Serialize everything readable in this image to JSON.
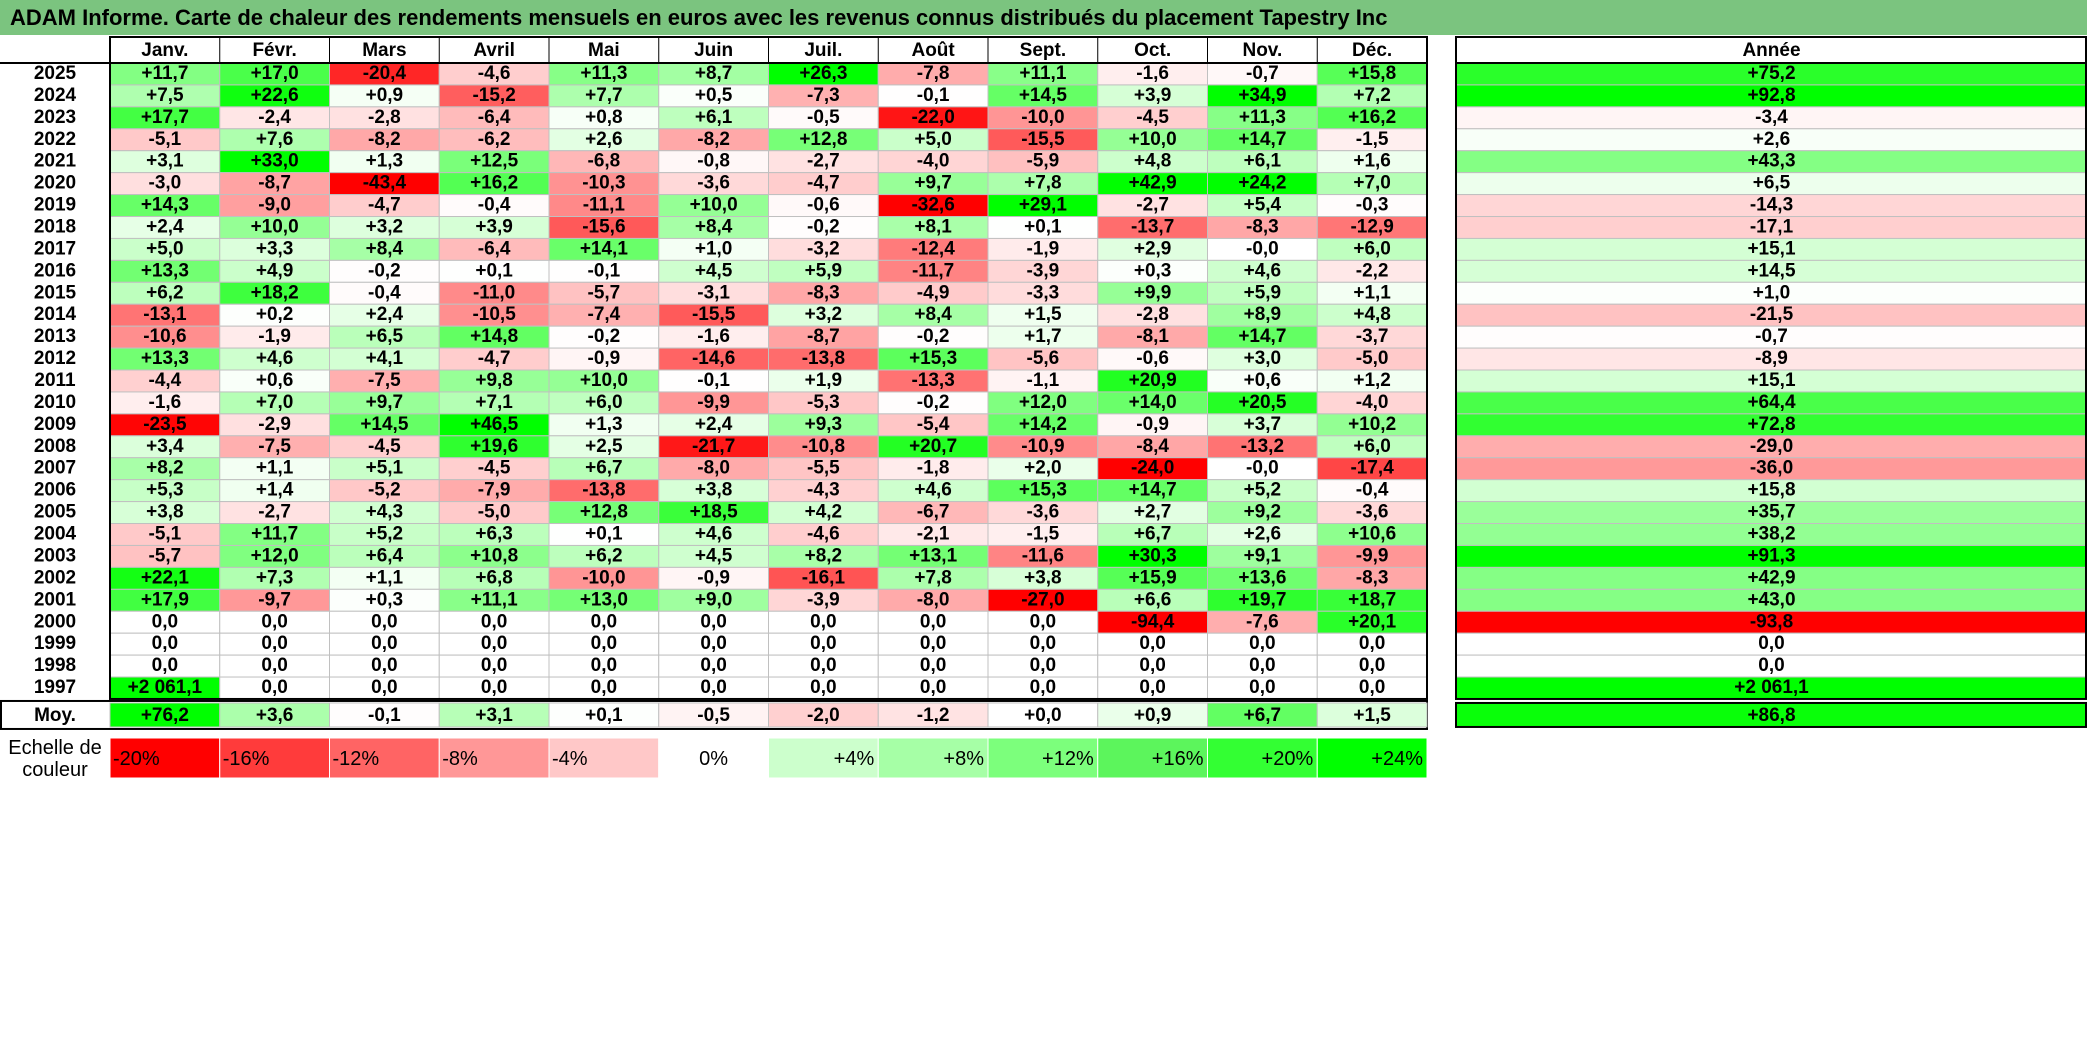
{
  "title": "ADAM Informe. Carte de chaleur des rendements mensuels en euros avec les revenus connus distribués du placement Tapestry Inc",
  "chart_data": {
    "type": "heatmap",
    "title": "ADAM Informe. Carte de chaleur des rendements mensuels en euros avec les revenus connus distribués du placement Tapestry Inc",
    "columns": [
      "Janv.",
      "Févr.",
      "Mars",
      "Avril",
      "Mai",
      "Juin",
      "Juil.",
      "Août",
      "Sept.",
      "Oct.",
      "Nov.",
      "Déc."
    ],
    "year_column_label": "Année",
    "rows": [
      {
        "year": "2025",
        "values": [
          "+11,7",
          "+17,0",
          "-20,4",
          "-4,6",
          "+11,3",
          "+8,7",
          "+26,3",
          "-7,8",
          "+11,1",
          "-1,6",
          "-0,7",
          "+15,8"
        ],
        "annual": "+75,2"
      },
      {
        "year": "2024",
        "values": [
          "+7,5",
          "+22,6",
          "+0,9",
          "-15,2",
          "+7,7",
          "+0,5",
          "-7,3",
          "-0,1",
          "+14,5",
          "+3,9",
          "+34,9",
          "+7,2"
        ],
        "annual": "+92,8"
      },
      {
        "year": "2023",
        "values": [
          "+17,7",
          "-2,4",
          "-2,8",
          "-6,4",
          "+0,8",
          "+6,1",
          "-0,5",
          "-22,0",
          "-10,0",
          "-4,5",
          "+11,3",
          "+16,2"
        ],
        "annual": "-3,4"
      },
      {
        "year": "2022",
        "values": [
          "-5,1",
          "+7,6",
          "-8,2",
          "-6,2",
          "+2,6",
          "-8,2",
          "+12,8",
          "+5,0",
          "-15,5",
          "+10,0",
          "+14,7",
          "-1,5"
        ],
        "annual": "+2,6"
      },
      {
        "year": "2021",
        "values": [
          "+3,1",
          "+33,0",
          "+1,3",
          "+12,5",
          "-6,8",
          "-0,8",
          "-2,7",
          "-4,0",
          "-5,9",
          "+4,8",
          "+6,1",
          "+1,6"
        ],
        "annual": "+43,3"
      },
      {
        "year": "2020",
        "values": [
          "-3,0",
          "-8,7",
          "-43,4",
          "+16,2",
          "-10,3",
          "-3,6",
          "-4,7",
          "+9,7",
          "+7,8",
          "+42,9",
          "+24,2",
          "+7,0"
        ],
        "annual": "+6,5"
      },
      {
        "year": "2019",
        "values": [
          "+14,3",
          "-9,0",
          "-4,7",
          "-0,4",
          "-11,1",
          "+10,0",
          "-0,6",
          "-32,6",
          "+29,1",
          "-2,7",
          "+5,4",
          "-0,3"
        ],
        "annual": "-14,3"
      },
      {
        "year": "2018",
        "values": [
          "+2,4",
          "+10,0",
          "+3,2",
          "+3,9",
          "-15,6",
          "+8,4",
          "-0,2",
          "+8,1",
          "+0,1",
          "-13,7",
          "-8,3",
          "-12,9"
        ],
        "annual": "-17,1"
      },
      {
        "year": "2017",
        "values": [
          "+5,0",
          "+3,3",
          "+8,4",
          "-6,4",
          "+14,1",
          "+1,0",
          "-3,2",
          "-12,4",
          "-1,9",
          "+2,9",
          "-0,0",
          "+6,0"
        ],
        "annual": "+15,1"
      },
      {
        "year": "2016",
        "values": [
          "+13,3",
          "+4,9",
          "-0,2",
          "+0,1",
          "-0,1",
          "+4,5",
          "+5,9",
          "-11,7",
          "-3,9",
          "+0,3",
          "+4,6",
          "-2,2"
        ],
        "annual": "+14,5"
      },
      {
        "year": "2015",
        "values": [
          "+6,2",
          "+18,2",
          "-0,4",
          "-11,0",
          "-5,7",
          "-3,1",
          "-8,3",
          "-4,9",
          "-3,3",
          "+9,9",
          "+5,9",
          "+1,1"
        ],
        "annual": "+1,0"
      },
      {
        "year": "2014",
        "values": [
          "-13,1",
          "+0,2",
          "+2,4",
          "-10,5",
          "-7,4",
          "-15,5",
          "+3,2",
          "+8,4",
          "+1,5",
          "-2,8",
          "+8,9",
          "+4,8"
        ],
        "annual": "-21,5"
      },
      {
        "year": "2013",
        "values": [
          "-10,6",
          "-1,9",
          "+6,5",
          "+14,8",
          "-0,2",
          "-1,6",
          "-8,7",
          "-0,2",
          "+1,7",
          "-8,1",
          "+14,7",
          "-3,7"
        ],
        "annual": "-0,7"
      },
      {
        "year": "2012",
        "values": [
          "+13,3",
          "+4,6",
          "+4,1",
          "-4,7",
          "-0,9",
          "-14,6",
          "-13,8",
          "+15,3",
          "-5,6",
          "-0,6",
          "+3,0",
          "-5,0"
        ],
        "annual": "-8,9"
      },
      {
        "year": "2011",
        "values": [
          "-4,4",
          "+0,6",
          "-7,5",
          "+9,8",
          "+10,0",
          "-0,1",
          "+1,9",
          "-13,3",
          "-1,1",
          "+20,9",
          "+0,6",
          "+1,2"
        ],
        "annual": "+15,1"
      },
      {
        "year": "2010",
        "values": [
          "-1,6",
          "+7,0",
          "+9,7",
          "+7,1",
          "+6,0",
          "-9,9",
          "-5,3",
          "-0,2",
          "+12,0",
          "+14,0",
          "+20,5",
          "-4,0"
        ],
        "annual": "+64,4"
      },
      {
        "year": "2009",
        "values": [
          "-23,5",
          "-2,9",
          "+14,5",
          "+46,5",
          "+1,3",
          "+2,4",
          "+9,3",
          "-5,4",
          "+14,2",
          "-0,9",
          "+3,7",
          "+10,2"
        ],
        "annual": "+72,8"
      },
      {
        "year": "2008",
        "values": [
          "+3,4",
          "-7,5",
          "-4,5",
          "+19,6",
          "+2,5",
          "-21,7",
          "-10,8",
          "+20,7",
          "-10,9",
          "-8,4",
          "-13,2",
          "+6,0"
        ],
        "annual": "-29,0"
      },
      {
        "year": "2007",
        "values": [
          "+8,2",
          "+1,1",
          "+5,1",
          "-4,5",
          "+6,7",
          "-8,0",
          "-5,5",
          "-1,8",
          "+2,0",
          "-24,0",
          "-0,0",
          "-17,4"
        ],
        "annual": "-36,0"
      },
      {
        "year": "2006",
        "values": [
          "+5,3",
          "+1,4",
          "-5,2",
          "-7,9",
          "-13,8",
          "+3,8",
          "-4,3",
          "+4,6",
          "+15,3",
          "+14,7",
          "+5,2",
          "-0,4"
        ],
        "annual": "+15,8"
      },
      {
        "year": "2005",
        "values": [
          "+3,8",
          "-2,7",
          "+4,3",
          "-5,0",
          "+12,8",
          "+18,5",
          "+4,2",
          "-6,7",
          "-3,6",
          "+2,7",
          "+9,2",
          "-3,6"
        ],
        "annual": "+35,7"
      },
      {
        "year": "2004",
        "values": [
          "-5,1",
          "+11,7",
          "+5,2",
          "+6,3",
          "+0,1",
          "+4,6",
          "-4,6",
          "-2,1",
          "-1,5",
          "+6,7",
          "+2,6",
          "+10,6"
        ],
        "annual": "+38,2"
      },
      {
        "year": "2003",
        "values": [
          "-5,7",
          "+12,0",
          "+6,4",
          "+10,8",
          "+6,2",
          "+4,5",
          "+8,2",
          "+13,1",
          "-11,6",
          "+30,3",
          "+9,1",
          "-9,9"
        ],
        "annual": "+91,3"
      },
      {
        "year": "2002",
        "values": [
          "+22,1",
          "+7,3",
          "+1,1",
          "+6,8",
          "-10,0",
          "-0,9",
          "-16,1",
          "+7,8",
          "+3,8",
          "+15,9",
          "+13,6",
          "-8,3"
        ],
        "annual": "+42,9"
      },
      {
        "year": "2001",
        "values": [
          "+17,9",
          "-9,7",
          "+0,3",
          "+11,1",
          "+13,0",
          "+9,0",
          "-3,9",
          "-8,0",
          "-27,0",
          "+6,6",
          "+19,7",
          "+18,7"
        ],
        "annual": "+43,0"
      },
      {
        "year": "2000",
        "values": [
          "0,0",
          "0,0",
          "0,0",
          "0,0",
          "0,0",
          "0,0",
          "0,0",
          "0,0",
          "0,0",
          "-94,4",
          "-7,6",
          "+20,1"
        ],
        "annual": "-93,8"
      },
      {
        "year": "1999",
        "values": [
          "0,0",
          "0,0",
          "0,0",
          "0,0",
          "0,0",
          "0,0",
          "0,0",
          "0,0",
          "0,0",
          "0,0",
          "0,0",
          "0,0"
        ],
        "annual": "0,0"
      },
      {
        "year": "1998",
        "values": [
          "0,0",
          "0,0",
          "0,0",
          "0,0",
          "0,0",
          "0,0",
          "0,0",
          "0,0",
          "0,0",
          "0,0",
          "0,0",
          "0,0"
        ],
        "annual": "0,0"
      },
      {
        "year": "1997",
        "values": [
          "+2 061,1",
          "0,0",
          "0,0",
          "0,0",
          "0,0",
          "0,0",
          "0,0",
          "0,0",
          "0,0",
          "0,0",
          "0,0",
          "0,0"
        ],
        "annual": "+2 061,1"
      }
    ],
    "average": {
      "label": "Moy.",
      "values": [
        "+76,2",
        "+3,6",
        "-0,1",
        "+3,1",
        "+0,1",
        "-0,5",
        "-2,0",
        "-1,2",
        "+0,0",
        "+0,9",
        "+6,7",
        "+1,5"
      ],
      "annual": "+86,8"
    },
    "color_scale": {
      "label_line1": "Echelle de",
      "label_line2": "couleur",
      "stops": [
        "-20%",
        "-16%",
        "-12%",
        "-8%",
        "-4%",
        "0%",
        "+4%",
        "+8%",
        "+12%",
        "+16%",
        "+20%",
        "+24%"
      ],
      "colors": [
        "#ff0000",
        "#ff3b3b",
        "#ff6464",
        "#ff9797",
        "#ffc8c8",
        "#ffffff",
        "#ccffcc",
        "#a6ffa6",
        "#7cff7c",
        "#5cf55c",
        "#33ff33",
        "#00ff00"
      ]
    },
    "scale_max_monthly": 24,
    "scale_max_annual": 90,
    "colors": {
      "title_bar": "#7bc47f",
      "negative_max": "#ff0000",
      "positive_max": "#00ff00",
      "grid": "#c0c0c0",
      "border": "#000000"
    }
  }
}
